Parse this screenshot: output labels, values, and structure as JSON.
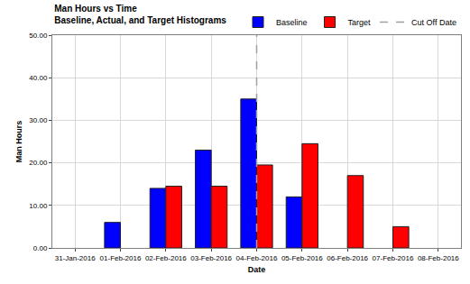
{
  "chart_data": {
    "type": "bar",
    "title": "Man Hours vs Time",
    "subtitle": "Baseline, Actual, and Target Histograms",
    "x_label": "Date",
    "y_label": "Man Hours",
    "categories": [
      "31-Jan-2016",
      "01-Feb-2016",
      "02-Feb-2016",
      "03-Feb-2016",
      "04-Feb-2016",
      "05-Feb-2016",
      "06-Feb-2016",
      "07-Feb-2016",
      "08-Feb-2016"
    ],
    "series": [
      {
        "name": "Baseline",
        "color": "#0000ff",
        "values": [
          null,
          6,
          14,
          23,
          35,
          12,
          null,
          null,
          null
        ]
      },
      {
        "name": "Target",
        "color": "#ff0000",
        "values": [
          null,
          null,
          14.5,
          14.5,
          19.5,
          24.5,
          17,
          5,
          null
        ]
      }
    ],
    "vlines": [
      {
        "name": "Cut Off Date",
        "x": "04-Feb-2016",
        "color": "#a0a0a0",
        "line_style": "dashed"
      }
    ],
    "ylim": [
      0,
      50
    ],
    "yticks": [
      {
        "value": 0,
        "label": "0.00"
      },
      {
        "value": 10,
        "label": "10.00"
      },
      {
        "value": 20,
        "label": "20.00"
      },
      {
        "value": 30,
        "label": "30.00"
      },
      {
        "value": 40,
        "label": "40.00"
      },
      {
        "value": 50,
        "label": "50.00"
      }
    ],
    "grid": true,
    "legend": "top"
  }
}
